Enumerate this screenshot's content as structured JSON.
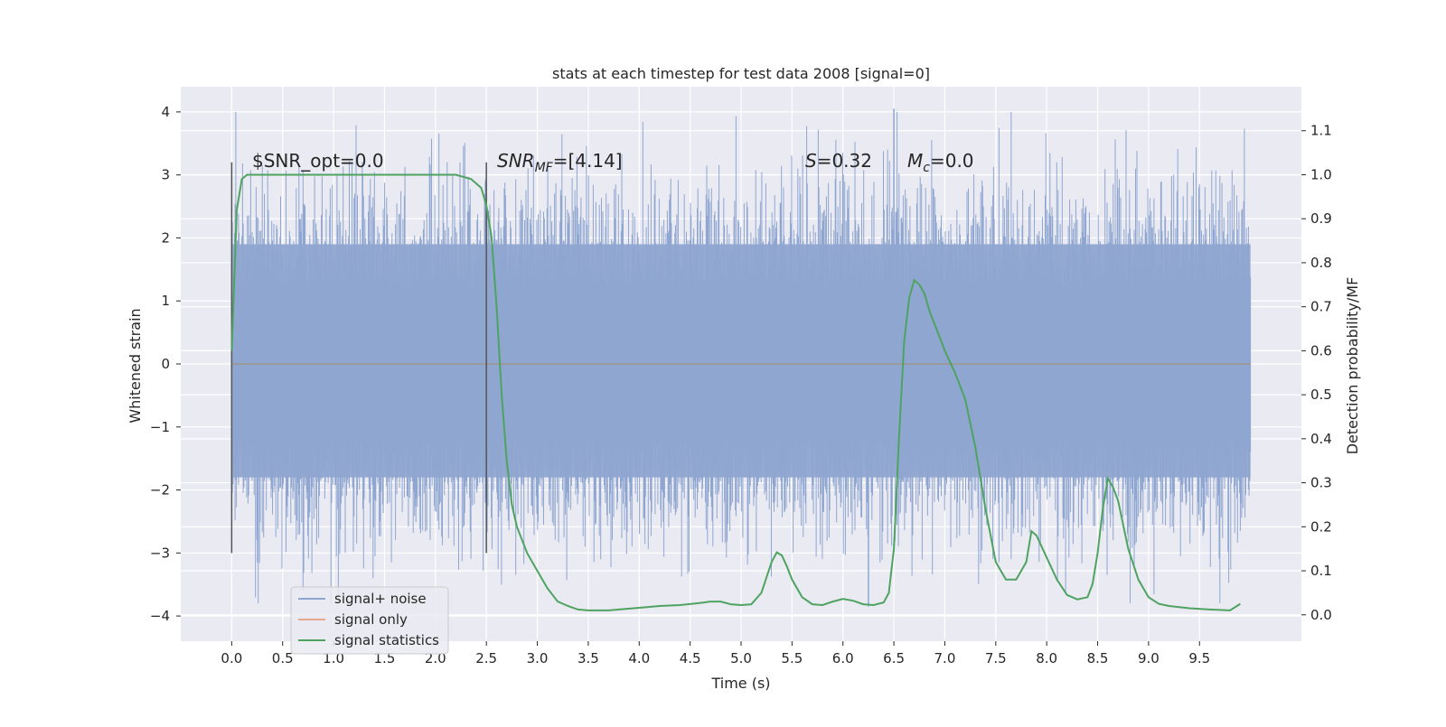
{
  "chart_data": {
    "type": "line",
    "title": "stats at each timestep for test data 2008 [signal=0]",
    "xlabel": "Time (s)",
    "ylabel": "Whitened strain",
    "y2label": "Detection probability/MF",
    "xlim": [
      -0.5,
      10.5
    ],
    "ylim": [
      -4.4,
      4.4
    ],
    "y2lim": [
      -0.06,
      1.2
    ],
    "x_ticks": [
      0.0,
      0.5,
      1.0,
      1.5,
      2.0,
      2.5,
      3.0,
      3.5,
      4.0,
      4.5,
      5.0,
      5.5,
      6.0,
      6.5,
      7.0,
      7.5,
      8.0,
      8.5,
      9.0,
      9.5
    ],
    "x_tick_labels": [
      "0.0",
      "0.5",
      "1.0",
      "1.5",
      "2.0",
      "2.5",
      "3.0",
      "3.5",
      "4.0",
      "4.5",
      "5.0",
      "5.5",
      "6.0",
      "6.5",
      "7.0",
      "7.5",
      "8.0",
      "8.5",
      "9.0",
      "9.5"
    ],
    "y_ticks": [
      -4,
      -3,
      -2,
      -1,
      0,
      1,
      2,
      3,
      4
    ],
    "y_tick_labels": [
      "−4",
      "−3",
      "−2",
      "−1",
      "0",
      "1",
      "2",
      "3",
      "4"
    ],
    "y2_ticks": [
      0.0,
      0.1,
      0.2,
      0.3,
      0.4,
      0.5,
      0.6,
      0.7,
      0.8,
      0.9,
      1.0,
      1.1
    ],
    "y2_tick_labels": [
      "0.0",
      "0.1",
      "0.2",
      "0.3",
      "0.4",
      "0.5",
      "0.6",
      "0.7",
      "0.8",
      "0.9",
      "1.0",
      "1.1"
    ],
    "grid": true,
    "legend": {
      "placement": "lower-left",
      "entries": [
        {
          "label": "signal+ noise",
          "color": "#8fa6d0"
        },
        {
          "label": "signal only",
          "color": "#e9a98f"
        },
        {
          "label": "signal statistics",
          "color": "#4ea361"
        }
      ]
    },
    "annotations": {
      "snr_opt": "$SNR_opt=0.0",
      "snr_mf_base": "SNR",
      "snr_mf_sub": "MF",
      "snr_mf_value": "=[4.14]",
      "s_symbol": "S",
      "s_value": "=0.32",
      "mc_base": "M",
      "mc_sub": "c",
      "mc_value": "=0.0"
    },
    "vlines": [
      {
        "x": 0.0,
        "ymin": -3.0,
        "ymax": 3.2
      },
      {
        "x": 2.5,
        "ymin": -3.0,
        "ymax": 3.2
      }
    ],
    "series": [
      {
        "name": "signal+ noise",
        "axis": "left",
        "style": "noise",
        "x_range": [
          0.0,
          10.0
        ],
        "core_band": [
          -1.8,
          1.9
        ],
        "peak_max": [
          4.05,
          6.5
        ],
        "peak_min": [
          -3.85,
          6.25
        ],
        "color": "#8fa6d0"
      },
      {
        "name": "signal only",
        "axis": "left",
        "x": [
          0.0,
          10.0
        ],
        "y": [
          0.0,
          0.0
        ],
        "color": "#e9a98f"
      },
      {
        "name": "signal statistics",
        "axis": "right",
        "color": "#4ea361",
        "x": [
          0.0,
          0.05,
          0.1,
          0.15,
          0.2,
          0.3,
          0.5,
          1.0,
          1.5,
          2.0,
          2.2,
          2.35,
          2.45,
          2.5,
          2.55,
          2.6,
          2.65,
          2.7,
          2.75,
          2.8,
          2.9,
          3.0,
          3.1,
          3.2,
          3.3,
          3.4,
          3.5,
          3.6,
          3.7,
          3.8,
          4.0,
          4.2,
          4.4,
          4.6,
          4.7,
          4.8,
          4.9,
          5.0,
          5.1,
          5.2,
          5.3,
          5.35,
          5.4,
          5.45,
          5.5,
          5.6,
          5.7,
          5.8,
          5.9,
          6.0,
          6.1,
          6.2,
          6.3,
          6.4,
          6.45,
          6.5,
          6.55,
          6.6,
          6.65,
          6.7,
          6.75,
          6.8,
          6.85,
          6.9,
          7.0,
          7.1,
          7.2,
          7.3,
          7.4,
          7.5,
          7.6,
          7.7,
          7.8,
          7.85,
          7.9,
          8.0,
          8.1,
          8.2,
          8.3,
          8.4,
          8.45,
          8.5,
          8.55,
          8.6,
          8.65,
          8.7,
          8.8,
          8.9,
          9.0,
          9.1,
          9.2,
          9.4,
          9.6,
          9.8,
          9.9
        ],
        "y": [
          0.6,
          0.92,
          0.99,
          1.0,
          1.0,
          1.0,
          1.0,
          1.0,
          1.0,
          1.0,
          1.0,
          0.99,
          0.97,
          0.93,
          0.86,
          0.7,
          0.5,
          0.35,
          0.25,
          0.2,
          0.14,
          0.1,
          0.06,
          0.03,
          0.02,
          0.012,
          0.01,
          0.01,
          0.01,
          0.012,
          0.016,
          0.02,
          0.022,
          0.027,
          0.03,
          0.03,
          0.024,
          0.022,
          0.024,
          0.05,
          0.12,
          0.142,
          0.135,
          0.11,
          0.08,
          0.04,
          0.024,
          0.022,
          0.03,
          0.036,
          0.032,
          0.024,
          0.022,
          0.028,
          0.05,
          0.15,
          0.4,
          0.62,
          0.72,
          0.76,
          0.75,
          0.73,
          0.69,
          0.66,
          0.6,
          0.55,
          0.49,
          0.38,
          0.24,
          0.12,
          0.08,
          0.08,
          0.12,
          0.19,
          0.18,
          0.13,
          0.08,
          0.045,
          0.035,
          0.04,
          0.07,
          0.14,
          0.24,
          0.31,
          0.29,
          0.26,
          0.15,
          0.08,
          0.04,
          0.025,
          0.02,
          0.015,
          0.012,
          0.01,
          0.025
        ]
      }
    ]
  }
}
